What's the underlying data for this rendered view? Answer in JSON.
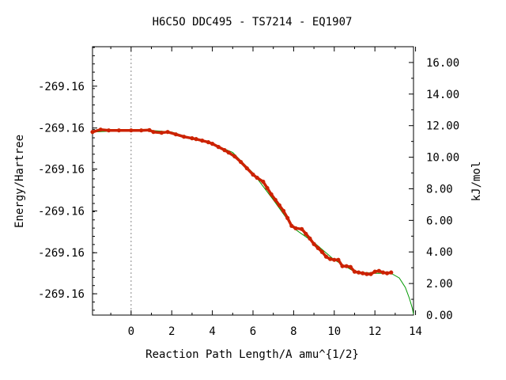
{
  "chart_data": {
    "type": "line",
    "title": "H6C5O   DDC495 - TS7214 - EQ1907",
    "xlabel": "Reaction Path Length/A amu^{1/2}",
    "ylabel_left": "Energy/Hartree",
    "ylabel_right": "kJ/mol",
    "xlim": [
      -1.9,
      13.9
    ],
    "ylim_right": [
      0,
      17
    ],
    "x_ticks": [
      0,
      2,
      4,
      6,
      8,
      10,
      12,
      14
    ],
    "x_tick_labels": [
      "0",
      "2",
      "4",
      "6",
      "8",
      "10",
      "12",
      "14"
    ],
    "y_right_ticks": [
      0,
      2,
      4,
      6,
      8,
      10,
      12,
      14,
      16
    ],
    "y_right_tick_labels": [
      "0.00",
      "2.00",
      "4.00",
      "6.00",
      "8.00",
      "10.00",
      "12.00",
      "14.00",
      "16.00"
    ],
    "y_left_ticks_kjmol": [
      1.35,
      3.95,
      6.6,
      9.25,
      11.85,
      14.5
    ],
    "y_left_tick_labels": [
      "-269.16",
      "-269.16",
      "-269.16",
      "-269.16",
      "-269.16",
      "-269.16"
    ],
    "reference_line_x": 0,
    "series": [
      {
        "role": "markers",
        "color": "#cc2200",
        "x": [
          -1.9,
          -1.5,
          -1.1,
          -0.6,
          0.0,
          0.5,
          0.9,
          1.1,
          1.5,
          1.8,
          2.2,
          2.6,
          3.0,
          3.2,
          3.5,
          3.8,
          4.0,
          4.3,
          4.6,
          4.8,
          5.1,
          5.4,
          5.7,
          6.0,
          6.2,
          6.5,
          6.7,
          6.9,
          7.1,
          7.3,
          7.5,
          7.7,
          7.9,
          8.1,
          8.4,
          8.6,
          8.8,
          9.0,
          9.2,
          9.4,
          9.6,
          9.8,
          10.0,
          10.2,
          10.4,
          10.6,
          10.8,
          11.0,
          11.2,
          11.4,
          11.6,
          11.8,
          12.0,
          12.2,
          12.4,
          12.6,
          12.8
        ],
        "y": [
          11.6,
          11.75,
          11.7,
          11.7,
          11.7,
          11.7,
          11.72,
          11.6,
          11.55,
          11.6,
          11.45,
          11.3,
          11.2,
          11.15,
          11.05,
          10.95,
          10.85,
          10.65,
          10.45,
          10.3,
          10.05,
          9.7,
          9.3,
          8.9,
          8.7,
          8.45,
          8.05,
          7.65,
          7.3,
          6.95,
          6.6,
          6.15,
          5.65,
          5.5,
          5.45,
          5.15,
          4.85,
          4.5,
          4.25,
          4.0,
          3.7,
          3.55,
          3.5,
          3.5,
          3.1,
          3.1,
          3.05,
          2.75,
          2.7,
          2.65,
          2.6,
          2.6,
          2.75,
          2.8,
          2.7,
          2.65,
          2.7
        ]
      },
      {
        "role": "line",
        "color": "#009900",
        "x": [
          -1.9,
          0.0,
          1.0,
          2.0,
          3.0,
          4.0,
          5.0,
          6.0,
          7.0,
          8.0,
          9.0,
          10.0,
          11.0,
          12.0,
          12.8,
          13.2,
          13.5,
          13.7,
          13.85,
          13.9
        ],
        "y": [
          11.6,
          11.7,
          11.7,
          11.6,
          11.2,
          10.85,
          10.3,
          9.0,
          7.3,
          5.5,
          4.6,
          3.5,
          2.75,
          2.65,
          2.65,
          2.35,
          1.75,
          1.05,
          0.4,
          0.05
        ]
      }
    ]
  }
}
